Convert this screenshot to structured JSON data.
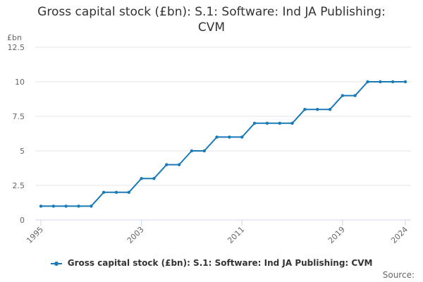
{
  "chart_data": {
    "type": "line",
    "title_lines": [
      "Gross capital stock (£bn): S.1: Software: Ind JA Publishing:",
      "CVM"
    ],
    "unit": "£bn",
    "x": [
      1995,
      1996,
      1997,
      1998,
      1999,
      2000,
      2001,
      2002,
      2003,
      2004,
      2005,
      2006,
      2007,
      2008,
      2009,
      2010,
      2011,
      2012,
      2013,
      2014,
      2015,
      2016,
      2017,
      2018,
      2019,
      2020,
      2021,
      2022,
      2023,
      2024
    ],
    "x_tick_labels": [
      "1995",
      "2003",
      "2011",
      "2019",
      "2024"
    ],
    "x_range": [
      1995,
      2024
    ],
    "y_ticks": [
      "0",
      "2.5",
      "5",
      "7.5",
      "10",
      "12.5"
    ],
    "ylim": [
      0,
      12.5
    ],
    "grid": true,
    "legend_position": "bottom",
    "series": [
      {
        "name": "Gross capital stock (£bn): S.1: Software: Ind JA Publishing: CVM",
        "color": "#1a7ab8",
        "values": [
          1,
          1,
          1,
          1,
          1,
          2,
          2,
          2,
          3,
          3,
          4,
          4,
          5,
          5,
          6,
          6,
          6,
          7,
          7,
          7,
          7,
          8,
          8,
          8,
          9,
          9,
          10,
          10,
          10,
          10
        ]
      }
    ]
  },
  "credit": "Source:"
}
